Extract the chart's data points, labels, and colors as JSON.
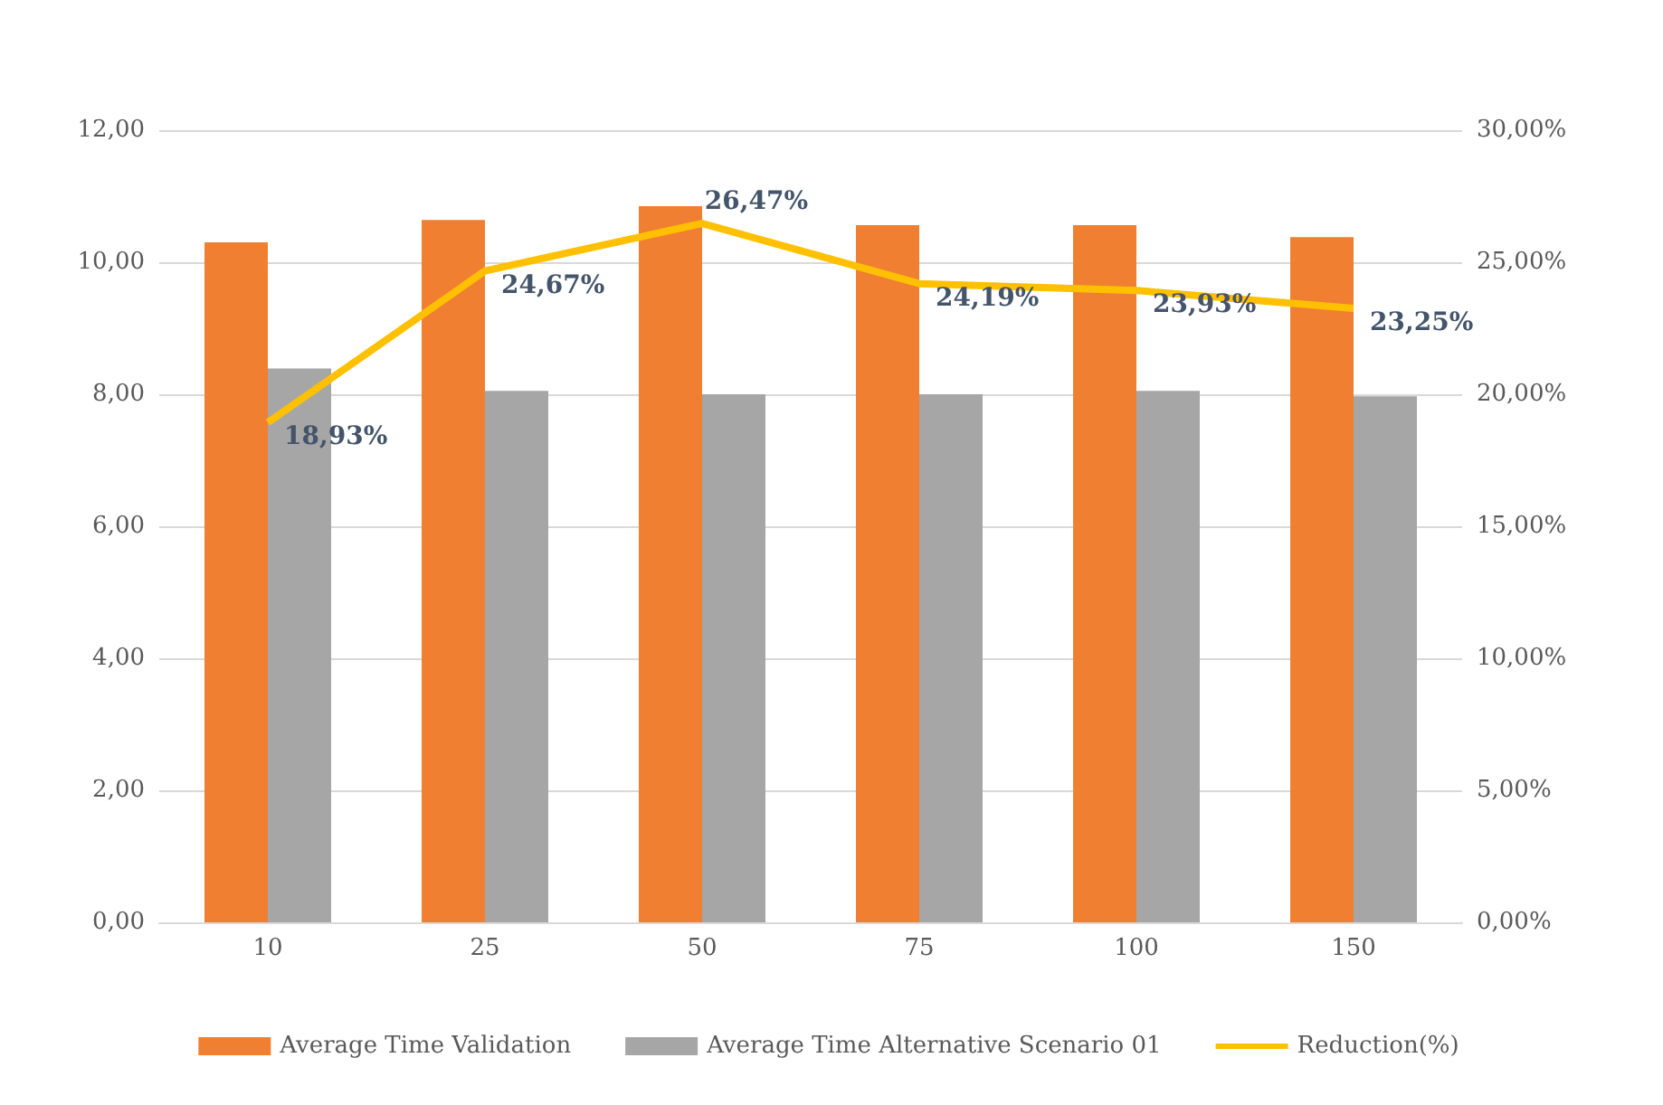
{
  "chart_data": {
    "type": "bar",
    "categories": [
      "10",
      "25",
      "50",
      "75",
      "100",
      "150"
    ],
    "series": [
      {
        "name": "Average Time Validation",
        "color": "#f07f32",
        "values": [
          10.3,
          10.64,
          10.85,
          10.56,
          10.56,
          10.38
        ]
      },
      {
        "name": "Average Time Alternative Scenario 01",
        "color": "#a6a6a6",
        "values": [
          8.39,
          8.05,
          8.0,
          8.0,
          8.05,
          7.97
        ]
      },
      {
        "name": "Reduction(%)",
        "type": "line",
        "axis": "y2",
        "color": "#ffc000",
        "marker": "none",
        "values": [
          18.93,
          24.67,
          26.47,
          24.19,
          23.93,
          23.25
        ],
        "value_labels": [
          "18,93%",
          "24,67%",
          "26,47%",
          "24,19%",
          "23,93%",
          "23,25%"
        ]
      }
    ],
    "ylim": [
      0,
      12
    ],
    "yticks": [
      {
        "value": 0,
        "label": "0,00"
      },
      {
        "value": 2,
        "label": "2,00"
      },
      {
        "value": 4,
        "label": "4,00"
      },
      {
        "value": 6,
        "label": "6,00"
      },
      {
        "value": 8,
        "label": "8,00"
      },
      {
        "value": 10,
        "label": "10,00"
      },
      {
        "value": 12,
        "label": "12,00"
      }
    ],
    "y2lim": [
      0,
      30
    ],
    "y2ticks": [
      {
        "value": 0,
        "label": "0,00%"
      },
      {
        "value": 5,
        "label": "5,00%"
      },
      {
        "value": 10,
        "label": "10,00%"
      },
      {
        "value": 15,
        "label": "15,00%"
      },
      {
        "value": 20,
        "label": "20,00%"
      },
      {
        "value": 25,
        "label": "25,00%"
      },
      {
        "value": 30,
        "label": "30,00%"
      }
    ],
    "grid": "y",
    "legend": "bottom"
  }
}
